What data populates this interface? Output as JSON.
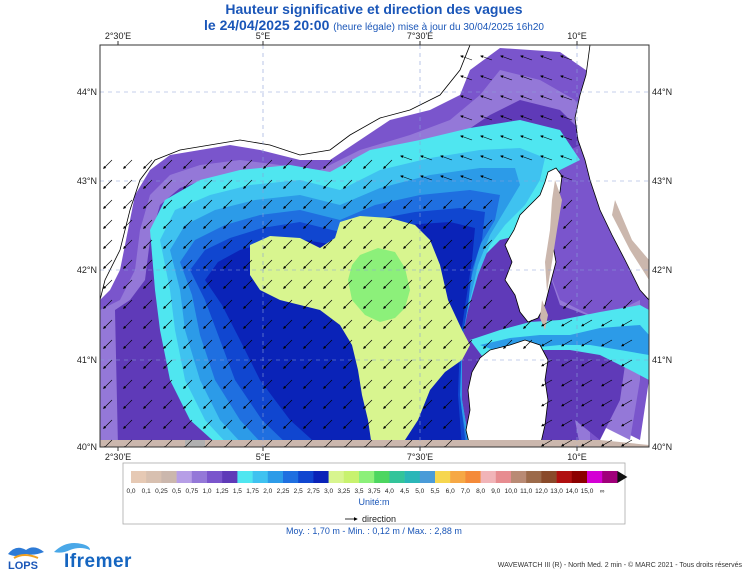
{
  "title": "Hauteur significative et direction des vagues",
  "subtitle_date": "le 24/04/2025 20:00",
  "subtitle_info": "(heure légale) mise à jour du 30/04/2025 16h20",
  "lon_ticks": [
    "2°30'E",
    "5°E",
    "7°30'E",
    "10°E"
  ],
  "lat_ticks": [
    "44°N",
    "43°N",
    "42°N",
    "41°N",
    "40°N"
  ],
  "colorbar": {
    "labels": [
      "0,0",
      "0,1",
      "0,25",
      "0,5",
      "0,75",
      "1,0",
      "1,25",
      "1,5",
      "1,75",
      "2,0",
      "2,25",
      "2,5",
      "2,75",
      "3,0",
      "3,25",
      "3,5",
      "3,75",
      "4,0",
      "4,5",
      "5,0",
      "5,5",
      "6,0",
      "7,0",
      "8,0",
      "9,0",
      "10,0",
      "11,0",
      "12,0",
      "13,0",
      "14,0",
      "15,0",
      "∞"
    ],
    "colors": [
      "#e6c9b4",
      "#d8c0b0",
      "#cbb7ad",
      "#b69ee6",
      "#9478d8",
      "#7a55cc",
      "#5f3ab8",
      "#4fe6f0",
      "#3fc2f0",
      "#2c9be8",
      "#1f6fe0",
      "#1046d0",
      "#0a23b8",
      "#d8f58f",
      "#c8f26e",
      "#8cf07a",
      "#4cd660",
      "#33c49a",
      "#2ab6b8",
      "#4a9bd8",
      "#f6d64e",
      "#f6a845",
      "#f48a3a",
      "#f1b4b8",
      "#e78c90",
      "#b98a74",
      "#9c6a4a",
      "#8a4a2a",
      "#b01010",
      "#8c0000",
      "#d400d4",
      "#a0007a"
    ],
    "unit": "Unité:m"
  },
  "legend_direction": "direction",
  "stats": "Moy. : 1,70 m  -  Min. : 0,12 m / Max. : 2,88 m",
  "footer": "WAVEWATCH III (R) - North Med. 2 min - © MARC 2021 - Tous droits réservés",
  "logos": {
    "lops": "LOPS",
    "ifremer": "Ifremer"
  }
}
